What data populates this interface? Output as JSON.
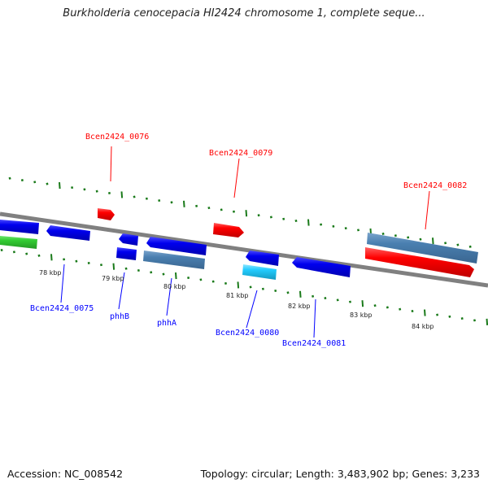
{
  "title": "Burkholderia cenocepacia HI2424 chromosome 1, complete seque...",
  "footer": {
    "accession": "Accession: NC_008542",
    "stats": "Topology: circular; Length: 3,483,902 bp; Genes: 3,233"
  },
  "colors": {
    "forward_label": "#ff0000",
    "reverse_label": "#0000ff",
    "backbone": "#808080",
    "ticks": "#1a7a1a"
  },
  "features": {
    "f0076": "Bcen2424_0076",
    "f0079": "Bcen2424_0079",
    "f0082": "Bcen2424_0082",
    "f0075": "Bcen2424_0075",
    "phhB": "phhB",
    "phhA": "phhA",
    "f0080": "Bcen2424_0080",
    "f0081": "Bcen2424_0081"
  },
  "scale": [
    "78 kbp",
    "79 kbp",
    "80 kbp",
    "81 kbp",
    "82 kbp",
    "83 kbp",
    "84 kbp"
  ]
}
